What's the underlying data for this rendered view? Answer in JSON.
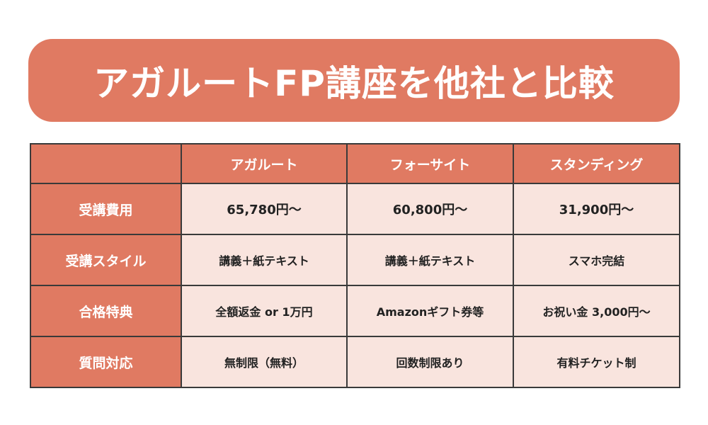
{
  "title": "アガルートFP講座を他社と比較",
  "table": {
    "corner": "",
    "columns": [
      "アガルート",
      "フォーサイト",
      "スタンディング"
    ],
    "rows": [
      {
        "label": "受講費用",
        "values": [
          "65,780円〜",
          "60,800円〜",
          "31,900円〜"
        ]
      },
      {
        "label": "受講スタイル",
        "values": [
          "講義＋紙テキスト",
          "講義＋紙テキスト",
          "スマホ完結"
        ]
      },
      {
        "label": "合格特典",
        "values": [
          "全額返金 or 1万円",
          "Amazonギフト券等",
          "お祝い金 3,000円〜"
        ]
      },
      {
        "label": "質問対応",
        "values": [
          "無制限（無料）",
          "回数制限あり",
          "有料チケット制"
        ]
      }
    ]
  },
  "colors": {
    "accent": "#e07a62",
    "cell_background": "#f9e4de",
    "border": "#3a3a3a",
    "text": "#222222"
  }
}
